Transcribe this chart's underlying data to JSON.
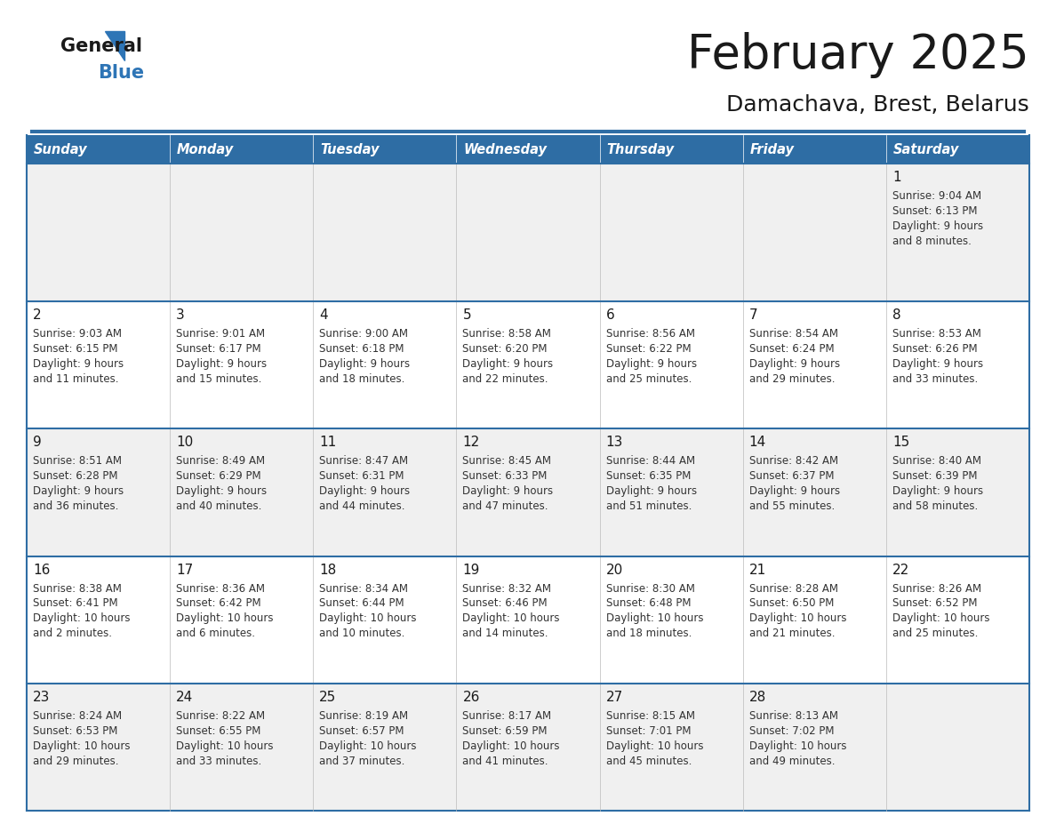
{
  "title": "February 2025",
  "subtitle": "Damachava, Brest, Belarus",
  "header_bg": "#2E6DA4",
  "header_text": "#FFFFFF",
  "day_names": [
    "Sunday",
    "Monday",
    "Tuesday",
    "Wednesday",
    "Thursday",
    "Friday",
    "Saturday"
  ],
  "row_separator_color": "#2E6DA4",
  "cell_border_color": "#CCCCCC",
  "title_color": "#1a1a1a",
  "subtitle_color": "#1a1a1a",
  "day_num_color": "#1a1a1a",
  "info_color": "#333333",
  "row_bg_colors": [
    "#F0F0F0",
    "#FFFFFF",
    "#F0F0F0",
    "#FFFFFF",
    "#F0F0F0"
  ],
  "logo_general_color": "#1a1a1a",
  "logo_blue_color": "#2E75B6",
  "weeks": [
    [
      null,
      null,
      null,
      null,
      null,
      null,
      1
    ],
    [
      2,
      3,
      4,
      5,
      6,
      7,
      8
    ],
    [
      9,
      10,
      11,
      12,
      13,
      14,
      15
    ],
    [
      16,
      17,
      18,
      19,
      20,
      21,
      22
    ],
    [
      23,
      24,
      25,
      26,
      27,
      28,
      null
    ]
  ],
  "day_data": {
    "1": {
      "sunrise": "9:04 AM",
      "sunset": "6:13 PM",
      "daylight": "9 hours and 8 minutes"
    },
    "2": {
      "sunrise": "9:03 AM",
      "sunset": "6:15 PM",
      "daylight": "9 hours and 11 minutes"
    },
    "3": {
      "sunrise": "9:01 AM",
      "sunset": "6:17 PM",
      "daylight": "9 hours and 15 minutes"
    },
    "4": {
      "sunrise": "9:00 AM",
      "sunset": "6:18 PM",
      "daylight": "9 hours and 18 minutes"
    },
    "5": {
      "sunrise": "8:58 AM",
      "sunset": "6:20 PM",
      "daylight": "9 hours and 22 minutes"
    },
    "6": {
      "sunrise": "8:56 AM",
      "sunset": "6:22 PM",
      "daylight": "9 hours and 25 minutes"
    },
    "7": {
      "sunrise": "8:54 AM",
      "sunset": "6:24 PM",
      "daylight": "9 hours and 29 minutes"
    },
    "8": {
      "sunrise": "8:53 AM",
      "sunset": "6:26 PM",
      "daylight": "9 hours and 33 minutes"
    },
    "9": {
      "sunrise": "8:51 AM",
      "sunset": "6:28 PM",
      "daylight": "9 hours and 36 minutes"
    },
    "10": {
      "sunrise": "8:49 AM",
      "sunset": "6:29 PM",
      "daylight": "9 hours and 40 minutes"
    },
    "11": {
      "sunrise": "8:47 AM",
      "sunset": "6:31 PM",
      "daylight": "9 hours and 44 minutes"
    },
    "12": {
      "sunrise": "8:45 AM",
      "sunset": "6:33 PM",
      "daylight": "9 hours and 47 minutes"
    },
    "13": {
      "sunrise": "8:44 AM",
      "sunset": "6:35 PM",
      "daylight": "9 hours and 51 minutes"
    },
    "14": {
      "sunrise": "8:42 AM",
      "sunset": "6:37 PM",
      "daylight": "9 hours and 55 minutes"
    },
    "15": {
      "sunrise": "8:40 AM",
      "sunset": "6:39 PM",
      "daylight": "9 hours and 58 minutes"
    },
    "16": {
      "sunrise": "8:38 AM",
      "sunset": "6:41 PM",
      "daylight": "10 hours and 2 minutes"
    },
    "17": {
      "sunrise": "8:36 AM",
      "sunset": "6:42 PM",
      "daylight": "10 hours and 6 minutes"
    },
    "18": {
      "sunrise": "8:34 AM",
      "sunset": "6:44 PM",
      "daylight": "10 hours and 10 minutes"
    },
    "19": {
      "sunrise": "8:32 AM",
      "sunset": "6:46 PM",
      "daylight": "10 hours and 14 minutes"
    },
    "20": {
      "sunrise": "8:30 AM",
      "sunset": "6:48 PM",
      "daylight": "10 hours and 18 minutes"
    },
    "21": {
      "sunrise": "8:28 AM",
      "sunset": "6:50 PM",
      "daylight": "10 hours and 21 minutes"
    },
    "22": {
      "sunrise": "8:26 AM",
      "sunset": "6:52 PM",
      "daylight": "10 hours and 25 minutes"
    },
    "23": {
      "sunrise": "8:24 AM",
      "sunset": "6:53 PM",
      "daylight": "10 hours and 29 minutes"
    },
    "24": {
      "sunrise": "8:22 AM",
      "sunset": "6:55 PM",
      "daylight": "10 hours and 33 minutes"
    },
    "25": {
      "sunrise": "8:19 AM",
      "sunset": "6:57 PM",
      "daylight": "10 hours and 37 minutes"
    },
    "26": {
      "sunrise": "8:17 AM",
      "sunset": "6:59 PM",
      "daylight": "10 hours and 41 minutes"
    },
    "27": {
      "sunrise": "8:15 AM",
      "sunset": "7:01 PM",
      "daylight": "10 hours and 45 minutes"
    },
    "28": {
      "sunrise": "8:13 AM",
      "sunset": "7:02 PM",
      "daylight": "10 hours and 49 minutes"
    }
  }
}
